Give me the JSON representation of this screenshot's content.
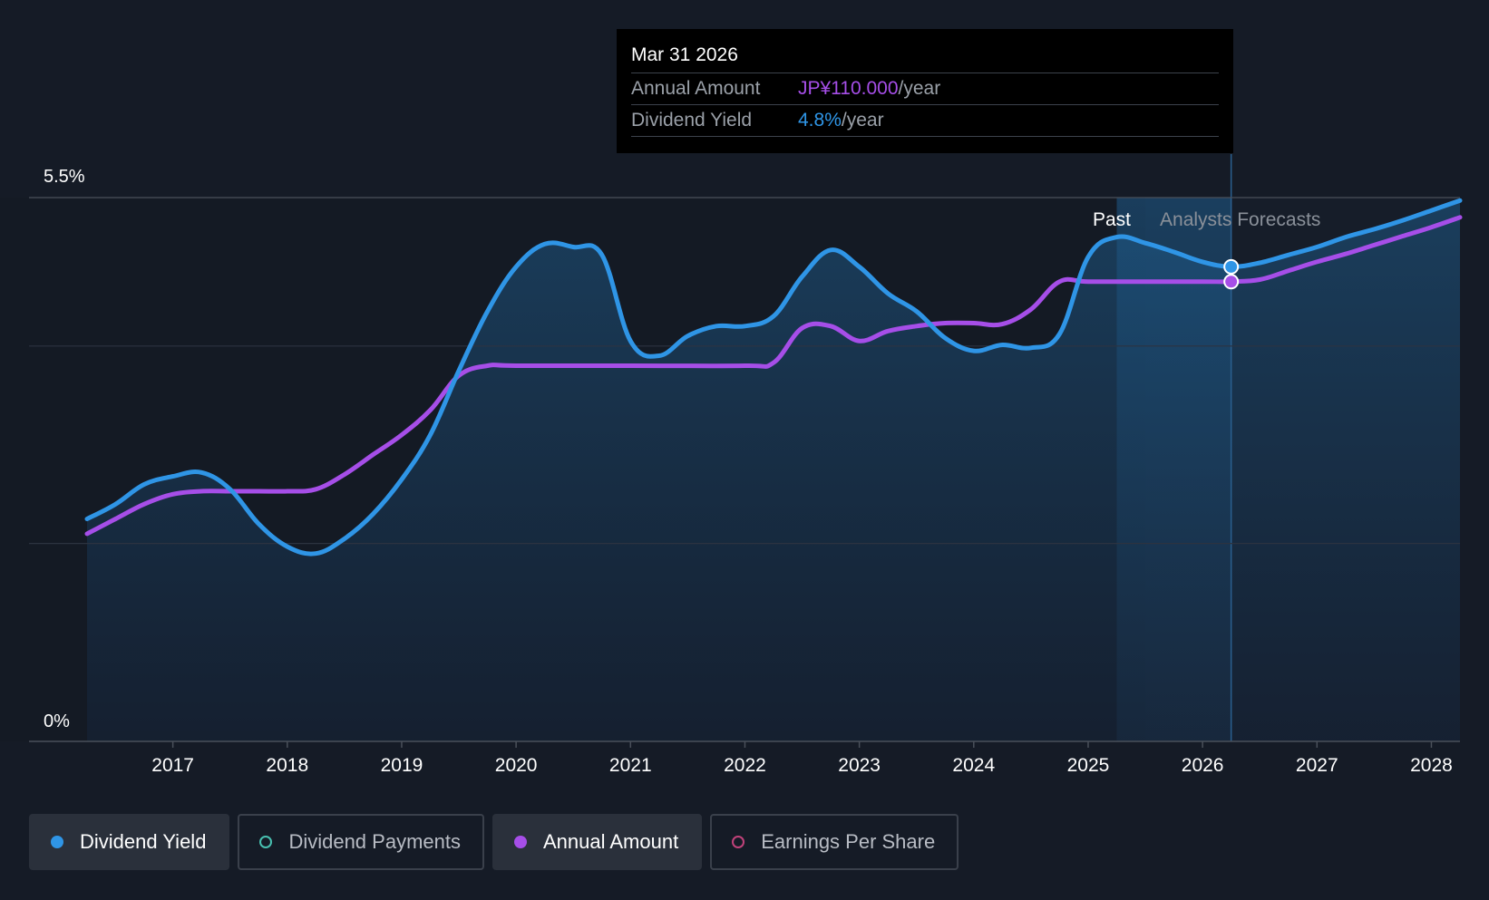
{
  "tooltip": {
    "date": "Mar 31 2026",
    "rows": [
      {
        "label": "Annual Amount",
        "value": "JP¥110.000",
        "unit": "/year",
        "color": "#a64ee8"
      },
      {
        "label": "Dividend Yield",
        "value": "4.8%",
        "unit": "/year",
        "color": "#2f95e6"
      }
    ]
  },
  "legend": [
    {
      "label": "Dividend Yield",
      "color": "#2f95e6",
      "active": true,
      "filled": true
    },
    {
      "label": "Dividend Payments",
      "color": "#48c0b0",
      "active": false,
      "filled": false
    },
    {
      "label": "Annual Amount",
      "color": "#a64ee8",
      "active": true,
      "filled": true
    },
    {
      "label": "Earnings Per Share",
      "color": "#c0427a",
      "active": false,
      "filled": false
    }
  ],
  "chart_data": {
    "type": "line",
    "region_labels": {
      "past": "Past",
      "forecast": "Analysts Forecasts"
    },
    "past_until": 2025.5,
    "highlight_x": 2026.25,
    "x_ticks": [
      2017,
      2018,
      2019,
      2020,
      2021,
      2022,
      2023,
      2024,
      2025,
      2026,
      2027,
      2028
    ],
    "y_tick_labels": [
      "0%",
      "5.5%"
    ],
    "ylim": [
      0,
      5.5
    ],
    "xlim": [
      2015.75,
      2028.25
    ],
    "series": [
      {
        "name": "Dividend Yield",
        "color": "#2f95e6",
        "x": [
          2016.25,
          2016.5,
          2016.75,
          2017.0,
          2017.25,
          2017.5,
          2017.75,
          2018.0,
          2018.25,
          2018.5,
          2018.75,
          2019.0,
          2019.25,
          2019.5,
          2019.75,
          2020.0,
          2020.25,
          2020.5,
          2020.75,
          2021.0,
          2021.25,
          2021.5,
          2021.75,
          2022.0,
          2022.25,
          2022.5,
          2022.75,
          2023.0,
          2023.25,
          2023.5,
          2023.75,
          2024.0,
          2024.25,
          2024.5,
          2024.75,
          2025.0,
          2025.25,
          2025.5,
          2025.75,
          2026.0,
          2026.25,
          2026.5,
          2026.75,
          2027.0,
          2027.25,
          2027.5,
          2027.75,
          2028.0,
          2028.25
        ],
        "values": [
          2.25,
          2.4,
          2.6,
          2.68,
          2.72,
          2.55,
          2.2,
          1.97,
          1.9,
          2.05,
          2.3,
          2.65,
          3.1,
          3.75,
          4.35,
          4.8,
          5.03,
          5.0,
          4.92,
          4.05,
          3.9,
          4.1,
          4.2,
          4.2,
          4.3,
          4.7,
          4.97,
          4.8,
          4.53,
          4.35,
          4.08,
          3.95,
          4.01,
          3.98,
          4.12,
          4.9,
          5.1,
          5.04,
          4.95,
          4.85,
          4.8,
          4.84,
          4.92,
          5.0,
          5.1,
          5.18,
          5.27,
          5.37,
          5.47
        ]
      },
      {
        "name": "Annual Amount",
        "color": "#a64ee8",
        "x": [
          2016.25,
          2016.5,
          2016.75,
          2017.0,
          2017.25,
          2017.5,
          2017.75,
          2018.0,
          2018.25,
          2018.5,
          2018.75,
          2019.0,
          2019.25,
          2019.5,
          2019.75,
          2020.0,
          2021.0,
          2022.0,
          2022.25,
          2022.5,
          2022.75,
          2023.0,
          2023.25,
          2023.5,
          2023.75,
          2024.0,
          2024.25,
          2024.5,
          2024.75,
          2025.0,
          2025.5,
          2026.0,
          2026.25,
          2026.5,
          2026.75,
          2027.0,
          2027.25,
          2027.5,
          2027.75,
          2028.0,
          2028.25
        ],
        "values": [
          2.1,
          2.25,
          2.4,
          2.5,
          2.53,
          2.53,
          2.53,
          2.53,
          2.55,
          2.7,
          2.9,
          3.1,
          3.35,
          3.7,
          3.8,
          3.8,
          3.8,
          3.8,
          3.83,
          4.18,
          4.2,
          4.05,
          4.15,
          4.2,
          4.23,
          4.23,
          4.22,
          4.37,
          4.65,
          4.65,
          4.65,
          4.65,
          4.65,
          4.67,
          4.76,
          4.85,
          4.93,
          5.02,
          5.11,
          5.2,
          5.3
        ]
      }
    ],
    "highlight_points": [
      {
        "series": "Dividend Yield",
        "x": 2026.25,
        "y": 4.8
      },
      {
        "series": "Annual Amount",
        "x": 2026.25,
        "y": 4.65
      }
    ]
  }
}
